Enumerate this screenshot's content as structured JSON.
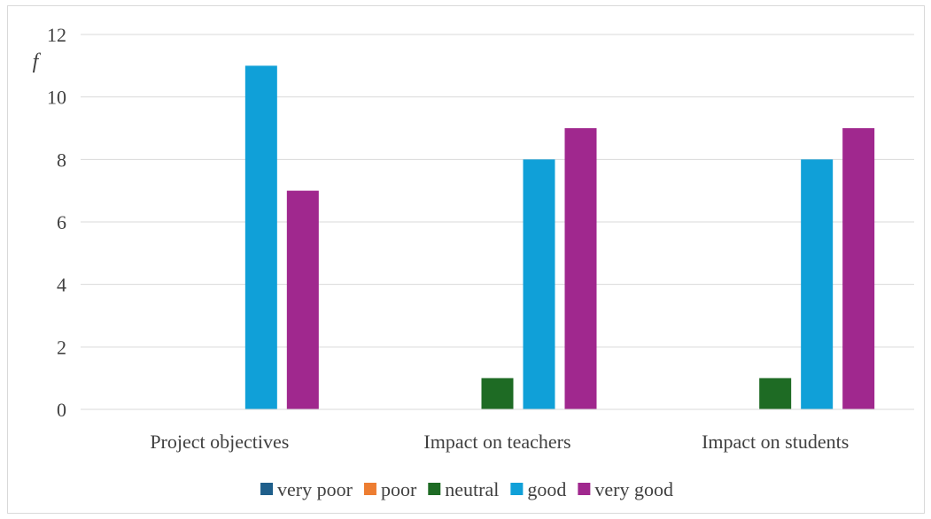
{
  "chart_data": {
    "type": "bar",
    "title": "",
    "xlabel": "",
    "ylabel": "f",
    "ylim": [
      0,
      12
    ],
    "yticks": [
      0,
      2,
      4,
      6,
      8,
      10,
      12
    ],
    "grid": true,
    "legend_position": "bottom",
    "categories": [
      "Project objectives",
      "Impact on teachers",
      "Impact on students"
    ],
    "series": [
      {
        "name": "very poor",
        "color": "#1f5f8b",
        "values": [
          0,
          0,
          0
        ]
      },
      {
        "name": "poor",
        "color": "#ed7d31",
        "values": [
          0,
          0,
          0
        ]
      },
      {
        "name": "neutral",
        "color": "#1e6b24",
        "values": [
          0,
          1,
          1
        ]
      },
      {
        "name": "good",
        "color": "#10a0d8",
        "values": [
          11,
          8,
          8
        ]
      },
      {
        "name": "very good",
        "color": "#a0288e",
        "values": [
          7,
          9,
          9
        ]
      }
    ]
  }
}
